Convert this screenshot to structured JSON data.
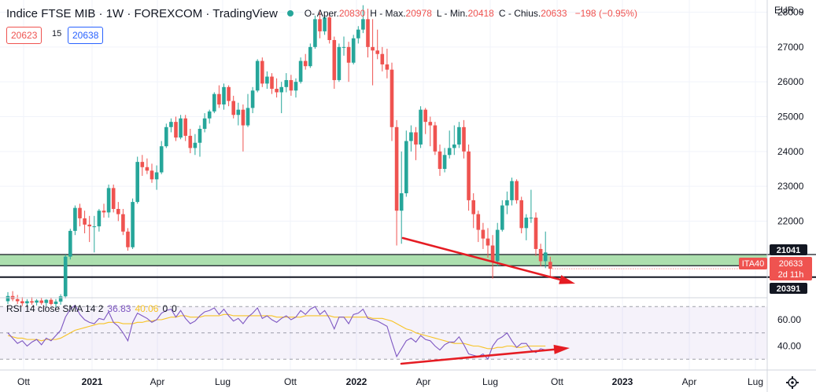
{
  "header": {
    "title": "Indice FTSE MIB · 1W · FOREXCOM · TradingView",
    "open_label": "O",
    "open_text": "- Aper.",
    "open": "20830",
    "high_label": "H - Max.",
    "high": "20978",
    "low_label": "L - Min.",
    "low": "20418",
    "close_label": "C - Chius.",
    "close": "20633",
    "change": "−198 (−0.95%)",
    "sell": "20623",
    "spread": "15",
    "buy": "20638",
    "currency": "EUR"
  },
  "rsi": {
    "label": "RSI 14 close SMA 14 2",
    "value": "36.83",
    "sma": "40.06",
    "extra1": "0",
    "extra2": "0",
    "ticks": [
      "60.00",
      "40.00"
    ]
  },
  "badges": {
    "upper": "21041",
    "symbol": "ITA40",
    "last": "20633",
    "countdown": "2d 11h",
    "lower": "20391"
  },
  "colors": {
    "up": "#26a69a",
    "down": "#ef5350",
    "zone": "#9ed9a0",
    "rsi_line": "#7e57c2",
    "sma_line": "#f7c325",
    "arrow": "#e51c23"
  },
  "chart_data": {
    "type": "candlestick",
    "title": "Indice FTSE MIB · 1W · FOREXCOM",
    "xlabel": "",
    "ylabel": "EUR",
    "ylim": [
      19800,
      28350
    ],
    "y_ticks": [
      22000,
      23000,
      24000,
      25000,
      26000,
      27000,
      28000
    ],
    "x_ticks": [
      "Ott",
      "2021",
      "Apr",
      "Lug",
      "Ott",
      "2022",
      "Apr",
      "Lug",
      "Ott",
      "2023",
      "Apr",
      "Lug"
    ],
    "support_zone": [
      20391,
      21041
    ],
    "last_price": 20633,
    "candles": [
      {
        "o": 19700,
        "h": 19960,
        "l": 19620,
        "c": 19850
      },
      {
        "o": 19850,
        "h": 19990,
        "l": 19700,
        "c": 19760
      },
      {
        "o": 19760,
        "h": 19880,
        "l": 19620,
        "c": 19700
      },
      {
        "o": 19700,
        "h": 19820,
        "l": 19560,
        "c": 19640
      },
      {
        "o": 19640,
        "h": 19760,
        "l": 19550,
        "c": 19700
      },
      {
        "o": 19700,
        "h": 19820,
        "l": 19600,
        "c": 19660
      },
      {
        "o": 19660,
        "h": 19760,
        "l": 19580,
        "c": 19720
      },
      {
        "o": 19720,
        "h": 19790,
        "l": 19600,
        "c": 19650
      },
      {
        "o": 19650,
        "h": 19760,
        "l": 19560,
        "c": 19740
      },
      {
        "o": 19740,
        "h": 19800,
        "l": 19580,
        "c": 19620
      },
      {
        "o": 19620,
        "h": 19760,
        "l": 19520,
        "c": 19690
      },
      {
        "o": 19690,
        "h": 19900,
        "l": 19600,
        "c": 19840
      },
      {
        "o": 19840,
        "h": 21040,
        "l": 19780,
        "c": 20980
      },
      {
        "o": 20980,
        "h": 21780,
        "l": 20900,
        "c": 21720
      },
      {
        "o": 21720,
        "h": 22450,
        "l": 21600,
        "c": 22380
      },
      {
        "o": 22380,
        "h": 22500,
        "l": 21850,
        "c": 22080
      },
      {
        "o": 22080,
        "h": 22300,
        "l": 21650,
        "c": 21900
      },
      {
        "o": 21900,
        "h": 22150,
        "l": 21400,
        "c": 21850
      },
      {
        "o": 21850,
        "h": 22150,
        "l": 21100,
        "c": 21850
      },
      {
        "o": 21850,
        "h": 22350,
        "l": 21700,
        "c": 22300
      },
      {
        "o": 22300,
        "h": 22500,
        "l": 22100,
        "c": 22250
      },
      {
        "o": 22250,
        "h": 23050,
        "l": 22100,
        "c": 22950
      },
      {
        "o": 22950,
        "h": 23050,
        "l": 22250,
        "c": 22350
      },
      {
        "o": 22350,
        "h": 22550,
        "l": 22000,
        "c": 22200
      },
      {
        "o": 22200,
        "h": 22350,
        "l": 21600,
        "c": 21700
      },
      {
        "o": 21700,
        "h": 21800,
        "l": 21150,
        "c": 21250
      },
      {
        "o": 21250,
        "h": 22650,
        "l": 21200,
        "c": 22550
      },
      {
        "o": 22550,
        "h": 23850,
        "l": 22500,
        "c": 23700
      },
      {
        "o": 23700,
        "h": 23900,
        "l": 23300,
        "c": 23550
      },
      {
        "o": 23550,
        "h": 23800,
        "l": 23350,
        "c": 23450
      },
      {
        "o": 23450,
        "h": 23650,
        "l": 23100,
        "c": 23200
      },
      {
        "o": 23200,
        "h": 23600,
        "l": 22900,
        "c": 23400
      },
      {
        "o": 23400,
        "h": 24300,
        "l": 23350,
        "c": 24150
      },
      {
        "o": 24150,
        "h": 24800,
        "l": 24100,
        "c": 24700
      },
      {
        "o": 24700,
        "h": 24950,
        "l": 24550,
        "c": 24850
      },
      {
        "o": 24850,
        "h": 25000,
        "l": 24300,
        "c": 24400
      },
      {
        "o": 24400,
        "h": 25050,
        "l": 24350,
        "c": 24950
      },
      {
        "o": 24950,
        "h": 25050,
        "l": 24300,
        "c": 24450
      },
      {
        "o": 24450,
        "h": 24650,
        "l": 23950,
        "c": 24100
      },
      {
        "o": 24100,
        "h": 24500,
        "l": 23900,
        "c": 24250
      },
      {
        "o": 24250,
        "h": 24750,
        "l": 23850,
        "c": 24650
      },
      {
        "o": 24650,
        "h": 25100,
        "l": 24550,
        "c": 24950
      },
      {
        "o": 24950,
        "h": 25200,
        "l": 24800,
        "c": 25150
      },
      {
        "o": 25150,
        "h": 25700,
        "l": 25100,
        "c": 25650
      },
      {
        "o": 25650,
        "h": 25900,
        "l": 25250,
        "c": 25350
      },
      {
        "o": 25350,
        "h": 25950,
        "l": 25200,
        "c": 25850
      },
      {
        "o": 25850,
        "h": 25900,
        "l": 25300,
        "c": 25450
      },
      {
        "o": 25450,
        "h": 25600,
        "l": 24950,
        "c": 25050
      },
      {
        "o": 25050,
        "h": 25400,
        "l": 24750,
        "c": 25200
      },
      {
        "o": 25200,
        "h": 25350,
        "l": 24000,
        "c": 24750
      },
      {
        "o": 24750,
        "h": 25650,
        "l": 24700,
        "c": 25250
      },
      {
        "o": 25250,
        "h": 25850,
        "l": 25100,
        "c": 25750
      },
      {
        "o": 25750,
        "h": 26650,
        "l": 25700,
        "c": 26600
      },
      {
        "o": 26600,
        "h": 26700,
        "l": 25850,
        "c": 25950
      },
      {
        "o": 25950,
        "h": 26300,
        "l": 25800,
        "c": 26150
      },
      {
        "o": 26150,
        "h": 26250,
        "l": 25650,
        "c": 25800
      },
      {
        "o": 25800,
        "h": 26100,
        "l": 25550,
        "c": 25700
      },
      {
        "o": 25700,
        "h": 26000,
        "l": 25100,
        "c": 25850
      },
      {
        "o": 25850,
        "h": 26250,
        "l": 25700,
        "c": 26050
      },
      {
        "o": 26050,
        "h": 26200,
        "l": 25600,
        "c": 25750
      },
      {
        "o": 25750,
        "h": 26100,
        "l": 25550,
        "c": 26000
      },
      {
        "o": 26000,
        "h": 26700,
        "l": 25950,
        "c": 26600
      },
      {
        "o": 26600,
        "h": 26800,
        "l": 26350,
        "c": 26450
      },
      {
        "o": 26450,
        "h": 27100,
        "l": 26400,
        "c": 27000
      },
      {
        "o": 27000,
        "h": 27900,
        "l": 26950,
        "c": 27800
      },
      {
        "o": 27800,
        "h": 28000,
        "l": 27250,
        "c": 27450
      },
      {
        "o": 27450,
        "h": 27900,
        "l": 27350,
        "c": 27850
      },
      {
        "o": 27850,
        "h": 27950,
        "l": 27100,
        "c": 27200
      },
      {
        "o": 27200,
        "h": 27300,
        "l": 25800,
        "c": 26050
      },
      {
        "o": 26050,
        "h": 27100,
        "l": 26000,
        "c": 27000
      },
      {
        "o": 27000,
        "h": 27300,
        "l": 26750,
        "c": 27000
      },
      {
        "o": 27000,
        "h": 27150,
        "l": 26000,
        "c": 26550
      },
      {
        "o": 26550,
        "h": 27350,
        "l": 26500,
        "c": 27250
      },
      {
        "o": 27250,
        "h": 27600,
        "l": 27100,
        "c": 27500
      },
      {
        "o": 27500,
        "h": 28200,
        "l": 27400,
        "c": 27800
      },
      {
        "o": 27800,
        "h": 28100,
        "l": 26700,
        "c": 27000
      },
      {
        "o": 27000,
        "h": 27800,
        "l": 25900,
        "c": 26900
      },
      {
        "o": 26900,
        "h": 27500,
        "l": 26650,
        "c": 26800
      },
      {
        "o": 26800,
        "h": 27000,
        "l": 26300,
        "c": 26500
      },
      {
        "o": 26500,
        "h": 26950,
        "l": 26100,
        "c": 26350
      },
      {
        "o": 26350,
        "h": 26550,
        "l": 24300,
        "c": 24700
      },
      {
        "o": 24700,
        "h": 24900,
        "l": 21300,
        "c": 22300
      },
      {
        "o": 22300,
        "h": 24000,
        "l": 21350,
        "c": 22800
      },
      {
        "o": 22800,
        "h": 24600,
        "l": 22700,
        "c": 24300
      },
      {
        "o": 24300,
        "h": 24750,
        "l": 24000,
        "c": 24550
      },
      {
        "o": 24550,
        "h": 24700,
        "l": 23750,
        "c": 24200
      },
      {
        "o": 24200,
        "h": 25300,
        "l": 24100,
        "c": 25200
      },
      {
        "o": 25200,
        "h": 25250,
        "l": 24500,
        "c": 24850
      },
      {
        "o": 24850,
        "h": 25000,
        "l": 24150,
        "c": 24750
      },
      {
        "o": 24750,
        "h": 24850,
        "l": 23900,
        "c": 24000
      },
      {
        "o": 24000,
        "h": 24200,
        "l": 23300,
        "c": 23500
      },
      {
        "o": 23500,
        "h": 24100,
        "l": 23400,
        "c": 23900
      },
      {
        "o": 23900,
        "h": 24600,
        "l": 23800,
        "c": 24100
      },
      {
        "o": 24100,
        "h": 24750,
        "l": 23900,
        "c": 24200
      },
      {
        "o": 24200,
        "h": 24850,
        "l": 24100,
        "c": 24700
      },
      {
        "o": 24700,
        "h": 24900,
        "l": 23800,
        "c": 24000
      },
      {
        "o": 24000,
        "h": 24200,
        "l": 22300,
        "c": 22600
      },
      {
        "o": 22600,
        "h": 22800,
        "l": 21800,
        "c": 22200
      },
      {
        "o": 22200,
        "h": 22300,
        "l": 21400,
        "c": 21750
      },
      {
        "o": 21750,
        "h": 21950,
        "l": 21200,
        "c": 21500
      },
      {
        "o": 21500,
        "h": 21800,
        "l": 20950,
        "c": 21300
      },
      {
        "o": 21300,
        "h": 21600,
        "l": 20350,
        "c": 20850
      },
      {
        "o": 20850,
        "h": 21950,
        "l": 20700,
        "c": 21750
      },
      {
        "o": 21750,
        "h": 22600,
        "l": 21700,
        "c": 22450
      },
      {
        "o": 22450,
        "h": 22850,
        "l": 22200,
        "c": 22600
      },
      {
        "o": 22600,
        "h": 23250,
        "l": 22450,
        "c": 23150
      },
      {
        "o": 23150,
        "h": 23200,
        "l": 22500,
        "c": 22600
      },
      {
        "o": 22600,
        "h": 22700,
        "l": 21650,
        "c": 21800
      },
      {
        "o": 21800,
        "h": 22200,
        "l": 21450,
        "c": 22100
      },
      {
        "o": 22100,
        "h": 22900,
        "l": 21950,
        "c": 22100
      },
      {
        "o": 22100,
        "h": 22250,
        "l": 21000,
        "c": 21200
      },
      {
        "o": 21200,
        "h": 21350,
        "l": 20700,
        "c": 20850
      },
      {
        "o": 20850,
        "h": 21700,
        "l": 20650,
        "c": 21100
      },
      {
        "o": 20830,
        "h": 20978,
        "l": 20418,
        "c": 20633
      }
    ],
    "rsi_values": [
      50,
      46,
      42,
      44,
      40,
      43,
      45,
      41,
      46,
      44,
      48,
      52,
      62,
      68,
      71,
      64,
      60,
      58,
      57,
      61,
      60,
      66,
      58,
      55,
      50,
      44,
      58,
      65,
      63,
      61,
      58,
      60,
      65,
      67,
      68,
      62,
      67,
      61,
      57,
      59,
      63,
      66,
      67,
      69,
      64,
      68,
      63,
      59,
      61,
      57,
      62,
      65,
      69,
      61,
      63,
      60,
      58,
      61,
      63,
      60,
      62,
      67,
      64,
      68,
      70,
      64,
      67,
      61,
      53,
      62,
      62,
      57,
      64,
      65,
      68,
      61,
      60,
      59,
      57,
      55,
      43,
      32,
      38,
      44,
      46,
      43,
      48,
      45,
      44,
      40,
      37,
      41,
      43,
      43,
      47,
      41,
      34,
      33,
      32,
      34,
      30,
      40,
      45,
      47,
      50,
      44,
      39,
      42,
      42,
      37,
      35,
      38,
      37
    ],
    "rsi_sma_values": [
      48,
      47,
      46,
      46,
      45,
      45,
      45,
      44,
      45,
      45,
      45,
      46,
      48,
      50,
      52,
      53,
      54,
      55,
      56,
      57,
      57,
      58,
      58,
      58,
      57,
      57,
      57,
      58,
      58,
      59,
      59,
      60,
      60,
      61,
      62,
      62,
      63,
      63,
      62,
      62,
      62,
      63,
      63,
      63,
      63,
      64,
      64,
      63,
      63,
      63,
      63,
      63,
      63,
      63,
      63,
      63,
      62,
      62,
      62,
      62,
      62,
      62,
      63,
      63,
      63,
      63,
      63,
      63,
      62,
      62,
      62,
      62,
      62,
      62,
      62,
      62,
      61,
      61,
      61,
      60,
      59,
      57,
      55,
      53,
      52,
      50,
      49,
      48,
      47,
      46,
      45,
      44,
      43,
      42,
      42,
      42,
      41,
      40,
      40,
      39,
      38,
      38,
      39,
      39,
      40,
      40,
      39,
      39,
      40,
      40,
      40,
      40,
      40
    ],
    "rsi_levels": [
      70,
      50,
      30
    ]
  }
}
